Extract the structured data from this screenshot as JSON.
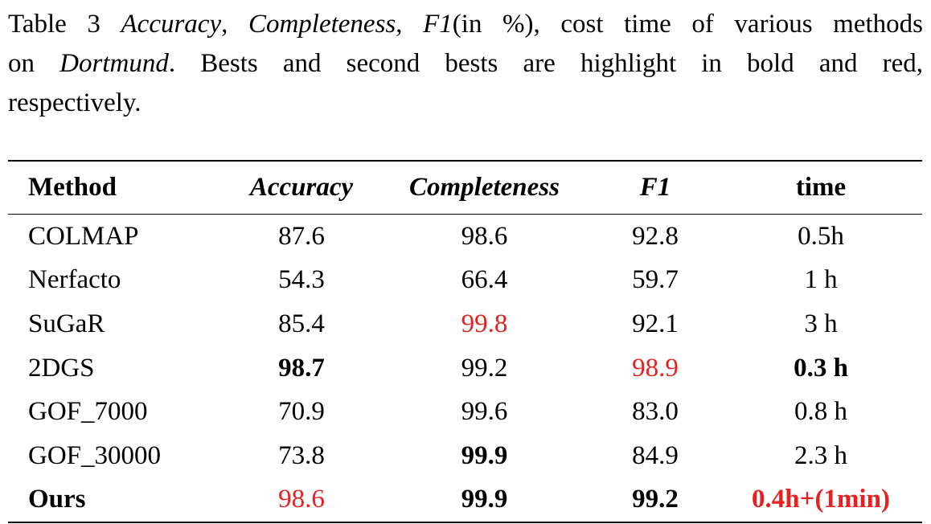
{
  "caption": {
    "line1_prefix": "Table 3 ",
    "line1_acc": "Accuracy",
    "line1_sep1": ", ",
    "line1_comp": "Completeness",
    "line1_sep2": ", ",
    "line1_f1": "F1",
    "line1_rest": "(in %), cost time of various methods",
    "line2_prefix": "on ",
    "line2_dataset": "Dortmund",
    "line2_rest": ". Bests and second bests are highlight in bold and red,",
    "line3": "respectively."
  },
  "table": {
    "headers": [
      "Method",
      "Accuracy",
      "Completeness",
      "F1",
      "time"
    ],
    "rows": [
      {
        "method": "COLMAP",
        "accuracy": "87.6",
        "completeness": "98.6",
        "f1": "92.8",
        "time": "0.5h",
        "style": {
          "method": "",
          "accuracy": "",
          "completeness": "",
          "f1": "",
          "time": ""
        }
      },
      {
        "method": "Nerfacto",
        "accuracy": "54.3",
        "completeness": "66.4",
        "f1": "59.7",
        "time": "1 h",
        "style": {
          "method": "",
          "accuracy": "",
          "completeness": "",
          "f1": "",
          "time": ""
        }
      },
      {
        "method": "SuGaR",
        "accuracy": "85.4",
        "completeness": "99.8",
        "f1": "92.1",
        "time": "3 h",
        "style": {
          "method": "",
          "accuracy": "",
          "completeness": "red",
          "f1": "",
          "time": ""
        }
      },
      {
        "method": "2DGS",
        "accuracy": "98.7",
        "completeness": "99.2",
        "f1": "98.9",
        "time": "0.3 h",
        "style": {
          "method": "",
          "accuracy": "bold",
          "completeness": "",
          "f1": "red",
          "time": "bold"
        }
      },
      {
        "method": "GOF_7000",
        "accuracy": "70.9",
        "completeness": "99.6",
        "f1": "83.0",
        "time": "0.8 h",
        "style": {
          "method": "",
          "accuracy": "",
          "completeness": "",
          "f1": "",
          "time": ""
        }
      },
      {
        "method": "GOF_30000",
        "accuracy": "73.8",
        "completeness": "99.9",
        "f1": "84.9",
        "time": "2.3 h",
        "style": {
          "method": "",
          "accuracy": "",
          "completeness": "bold",
          "f1": "",
          "time": ""
        }
      },
      {
        "method": "Ours",
        "accuracy": "98.6",
        "completeness": "99.9",
        "f1": "99.2",
        "time": "0.4h+(1min)",
        "style": {
          "method": "bold",
          "accuracy": "red",
          "completeness": "bold",
          "f1": "bold",
          "time": "red bold"
        }
      }
    ]
  },
  "colors": {
    "highlight_red": "#e8201e",
    "text": "#000000"
  }
}
